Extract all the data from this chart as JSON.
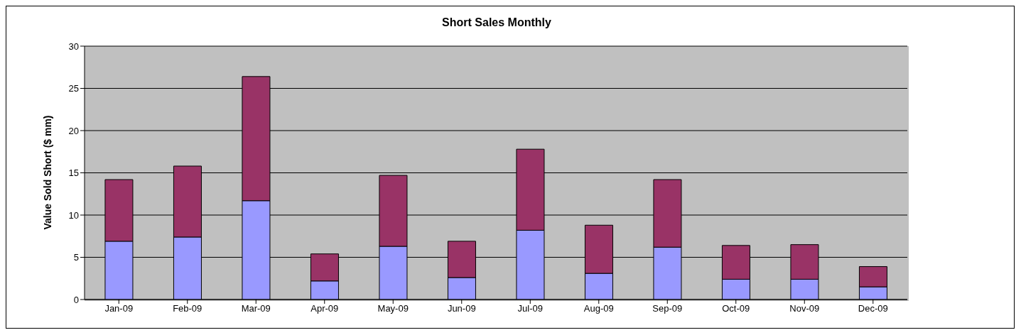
{
  "chart_data": {
    "type": "bar",
    "title": "Short Sales Monthly",
    "ylabel": "Value Sold Short ($ mm)",
    "categories": [
      "Jan-09",
      "Feb-09",
      "Mar-09",
      "Apr-09",
      "May-09",
      "Jun-09",
      "Jul-09",
      "Aug-09",
      "Sep-09",
      "Oct-09",
      "Nov-09",
      "Dec-09"
    ],
    "series": [
      {
        "color": "#9999ff",
        "values": [
          6.9,
          7.4,
          11.7,
          2.2,
          6.3,
          2.6,
          8.2,
          3.1,
          6.2,
          2.4,
          2.4,
          1.5
        ]
      },
      {
        "color": "#993366",
        "values": [
          7.3,
          8.4,
          14.7,
          3.2,
          8.4,
          4.3,
          9.6,
          5.7,
          8.0,
          4.0,
          4.1,
          2.4
        ]
      }
    ],
    "stacked": true,
    "ylim": [
      0,
      30
    ],
    "yticks": [
      0,
      5,
      10,
      15,
      20,
      25,
      30
    ],
    "grid": "y",
    "legend": false
  }
}
